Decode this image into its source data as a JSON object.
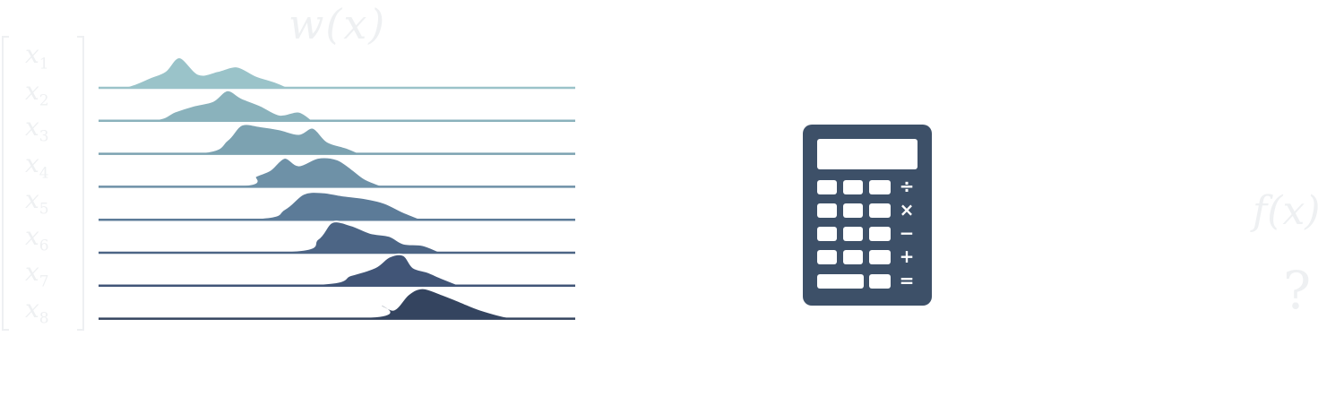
{
  "header": {
    "label": "w(x)"
  },
  "inputs": {
    "labels": [
      "x1",
      "x2",
      "x3",
      "x4",
      "x5",
      "x6",
      "x7",
      "x8"
    ],
    "sub_digits": [
      "1",
      "2",
      "3",
      "4",
      "5",
      "6",
      "7",
      "8"
    ]
  },
  "output": {
    "label": "f(x)",
    "unknown": "?"
  },
  "calculator": {
    "icon": "calculator-icon",
    "operators": [
      "÷",
      "×",
      "−",
      "+",
      "="
    ],
    "color": "#3d5068"
  },
  "ridgeline": {
    "type": "ridgeline",
    "rows": 8,
    "colors": [
      "#9ac3c9",
      "#8ab2bc",
      "#7ca2b1",
      "#6e91a7",
      "#5c7b98",
      "#4c6585",
      "#415577",
      "#34445f"
    ],
    "shapes": [
      [
        [
          0,
          0
        ],
        [
          0.06,
          0.05
        ],
        [
          0.11,
          0.35
        ],
        [
          0.14,
          0.55
        ],
        [
          0.17,
          1.0
        ],
        [
          0.21,
          0.45
        ],
        [
          0.25,
          0.55
        ],
        [
          0.29,
          0.7
        ],
        [
          0.33,
          0.4
        ],
        [
          0.37,
          0.2
        ],
        [
          0.4,
          0.0
        ]
      ],
      [
        [
          0,
          0
        ],
        [
          0.12,
          0.05
        ],
        [
          0.16,
          0.3
        ],
        [
          0.2,
          0.5
        ],
        [
          0.24,
          0.65
        ],
        [
          0.27,
          1.0
        ],
        [
          0.3,
          0.75
        ],
        [
          0.34,
          0.5
        ],
        [
          0.38,
          0.2
        ],
        [
          0.42,
          0.3
        ],
        [
          0.45,
          0.0
        ]
      ],
      [
        [
          0,
          0
        ],
        [
          0.22,
          0.05
        ],
        [
          0.27,
          0.45
        ],
        [
          0.3,
          0.95
        ],
        [
          0.34,
          0.9
        ],
        [
          0.38,
          0.8
        ],
        [
          0.42,
          0.65
        ],
        [
          0.45,
          0.85
        ],
        [
          0.48,
          0.4
        ],
        [
          0.52,
          0.2
        ],
        [
          0.55,
          0.0
        ]
      ],
      [
        [
          0,
          0
        ],
        [
          0.3,
          0.05
        ],
        [
          0.33,
          0.35
        ],
        [
          0.36,
          0.55
        ],
        [
          0.39,
          0.95
        ],
        [
          0.42,
          0.7
        ],
        [
          0.46,
          0.95
        ],
        [
          0.5,
          0.9
        ],
        [
          0.53,
          0.6
        ],
        [
          0.56,
          0.25
        ],
        [
          0.6,
          0.0
        ]
      ],
      [
        [
          0,
          0
        ],
        [
          0.33,
          0.05
        ],
        [
          0.39,
          0.35
        ],
        [
          0.43,
          0.85
        ],
        [
          0.47,
          0.9
        ],
        [
          0.51,
          0.8
        ],
        [
          0.56,
          0.7
        ],
        [
          0.6,
          0.55
        ],
        [
          0.64,
          0.25
        ],
        [
          0.68,
          0.0
        ]
      ],
      [
        [
          0,
          0
        ],
        [
          0.4,
          0.05
        ],
        [
          0.46,
          0.45
        ],
        [
          0.49,
          1.0
        ],
        [
          0.53,
          0.9
        ],
        [
          0.57,
          0.65
        ],
        [
          0.61,
          0.55
        ],
        [
          0.64,
          0.3
        ],
        [
          0.68,
          0.25
        ],
        [
          0.72,
          0.0
        ]
      ],
      [
        [
          0,
          0
        ],
        [
          0.45,
          0.05
        ],
        [
          0.53,
          0.35
        ],
        [
          0.58,
          0.6
        ],
        [
          0.61,
          0.95
        ],
        [
          0.64,
          1.0
        ],
        [
          0.66,
          0.6
        ],
        [
          0.69,
          0.45
        ],
        [
          0.72,
          0.25
        ],
        [
          0.76,
          0.0
        ]
      ],
      [
        [
          0,
          0
        ],
        [
          0.56,
          0.05
        ],
        [
          0.59,
          0.45
        ],
        [
          0.62,
          0.3
        ],
        [
          0.65,
          0.8
        ],
        [
          0.68,
          1.0
        ],
        [
          0.72,
          0.8
        ],
        [
          0.76,
          0.55
        ],
        [
          0.8,
          0.3
        ],
        [
          0.86,
          0.05
        ],
        [
          0.92,
          0.0
        ]
      ]
    ]
  }
}
